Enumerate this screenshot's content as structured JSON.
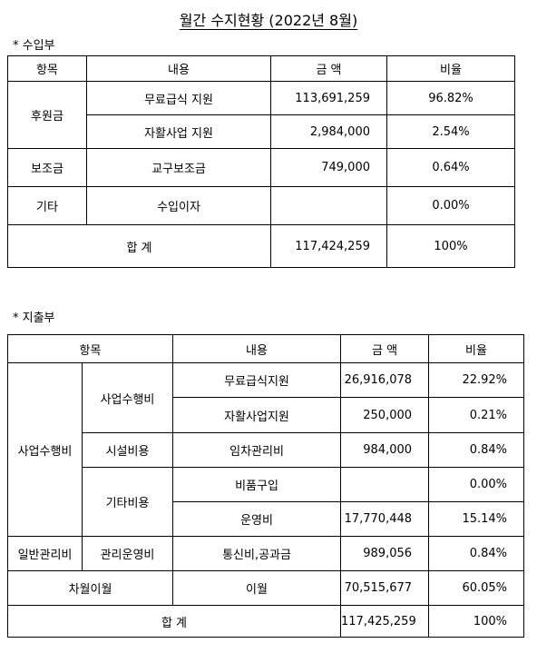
{
  "title": "월간 수지현황 (2022년 8월)",
  "income": {
    "label": "* 수입부",
    "header": [
      "항목",
      "내용",
      "금 액",
      "비율"
    ],
    "rows": [
      {
        "category": "후원금",
        "item": "무료급식 지원",
        "amount": "113,691,259",
        "ratio": "96.82%"
      },
      {
        "item": "자활사업 지원",
        "amount": "2,984,000",
        "ratio": "2.54%"
      },
      {
        "category": "보조금",
        "item": "교구보조금",
        "amount": "749,000",
        "ratio": "0.64%"
      },
      {
        "category": "기타",
        "item": "수입이자",
        "ratio": "0.00%"
      }
    ],
    "total": {
      "label": "합 계",
      "amount": "117,424,259",
      "ratio": "100%"
    }
  },
  "expense": {
    "label": "* 지출부",
    "header": [
      "항목",
      "내용",
      "금 액",
      "비율"
    ],
    "rows": [
      {
        "category": "사업수행비",
        "subcategory": "사업수행비",
        "item": "무료급식지원",
        "amount": "26,916,078",
        "ratio": "22.92%"
      },
      {
        "item": "자활사업지원",
        "amount": "250,000",
        "ratio": "0.21%"
      },
      {
        "subcategory": "시설비용",
        "item": "임차관리비",
        "amount": "984,000",
        "ratio": "0.84%"
      },
      {
        "subcategory": "기타비용",
        "item": "비품구입",
        "ratio": "0.00%"
      },
      {
        "item": "운영비",
        "amount": "17,770,448",
        "ratio": "15.14%"
      },
      {
        "category": "일반관리비",
        "subcategory": "관리운영비",
        "item": "통신비,공과금",
        "amount": "989,056",
        "ratio": "0.84%"
      },
      {
        "category": "차월이월",
        "item": "이월",
        "amount": "70,515,677",
        "ratio": "60.05%"
      }
    ],
    "total": {
      "label": "합 계",
      "amount": "117,425,259",
      "ratio": "100%"
    }
  }
}
